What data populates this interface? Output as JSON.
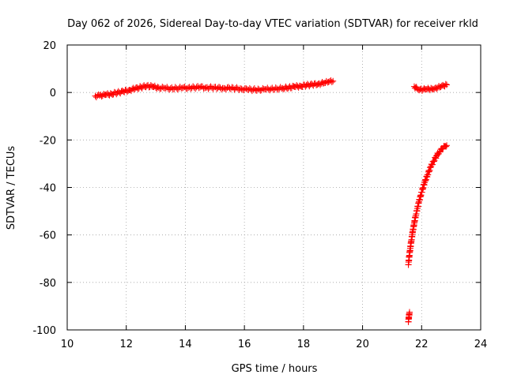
{
  "chart_data": {
    "type": "scatter",
    "title": "Day 062 of 2026, Sidereal Day-to-day VTEC variation (SDTVAR) for receiver rkld",
    "xlabel": "GPS time / hours",
    "ylabel": "SDTVAR / TECUs",
    "xlim": [
      10,
      24
    ],
    "ylim": [
      -100,
      20
    ],
    "x_ticks": [
      10,
      12,
      14,
      16,
      18,
      20,
      22,
      24
    ],
    "y_ticks": [
      20,
      0,
      -20,
      -40,
      -60,
      -80,
      -100
    ],
    "x_tick_labels": [
      "10",
      "12",
      "14",
      "16",
      "18",
      "20",
      "22",
      "24"
    ],
    "y_tick_labels": [
      "20",
      "0",
      "-20",
      "-40",
      "-60",
      "-80",
      "-100"
    ],
    "grid": true,
    "marker": "+",
    "colors": {
      "series": "#ff0000",
      "grid": "#a0a0a0",
      "axes": "#000000"
    },
    "series": [
      {
        "points": [
          [
            10.95,
            -1.5
          ],
          [
            11.1,
            -1.3
          ],
          [
            11.3,
            -1.0
          ],
          [
            11.5,
            -0.6
          ],
          [
            11.7,
            -0.1
          ],
          [
            11.9,
            0.4
          ],
          [
            12.1,
            1.0
          ],
          [
            12.3,
            1.6
          ],
          [
            12.5,
            2.2
          ],
          [
            12.7,
            2.8
          ],
          [
            12.9,
            2.4
          ],
          [
            13.1,
            2.0
          ],
          [
            13.3,
            1.8
          ],
          [
            13.5,
            1.7
          ],
          [
            13.7,
            1.8
          ],
          [
            13.9,
            1.9
          ],
          [
            14.1,
            2.0
          ],
          [
            14.3,
            2.1
          ],
          [
            14.5,
            2.2
          ],
          [
            14.7,
            2.1
          ],
          [
            14.9,
            2.0
          ],
          [
            15.1,
            1.9
          ],
          [
            15.3,
            1.8
          ],
          [
            15.5,
            1.8
          ],
          [
            15.7,
            1.7
          ],
          [
            15.9,
            1.5
          ],
          [
            16.1,
            1.3
          ],
          [
            16.3,
            1.2
          ],
          [
            16.5,
            1.2
          ],
          [
            16.7,
            1.3
          ],
          [
            16.9,
            1.5
          ],
          [
            17.1,
            1.6
          ],
          [
            17.3,
            1.8
          ],
          [
            17.5,
            2.1
          ],
          [
            17.7,
            2.4
          ],
          [
            17.9,
            2.7
          ],
          [
            18.1,
            3.0
          ],
          [
            18.3,
            3.3
          ],
          [
            18.5,
            3.6
          ],
          [
            18.7,
            4.0
          ],
          [
            18.85,
            4.4
          ],
          [
            19.0,
            4.8
          ]
        ]
      },
      {
        "points": [
          [
            21.75,
            2.5
          ],
          [
            21.85,
            1.6
          ],
          [
            21.95,
            1.3
          ],
          [
            22.05,
            1.2
          ],
          [
            22.15,
            1.3
          ],
          [
            22.25,
            1.4
          ],
          [
            22.35,
            1.6
          ],
          [
            22.45,
            1.8
          ],
          [
            22.55,
            2.1
          ],
          [
            22.65,
            2.4
          ],
          [
            22.75,
            2.8
          ],
          [
            22.85,
            3.2
          ]
        ]
      },
      {
        "points": [
          [
            21.55,
            -96.5
          ],
          [
            21.57,
            -94.5
          ],
          [
            21.59,
            -92.5
          ]
        ]
      },
      {
        "points": [
          [
            21.55,
            -72.5
          ],
          [
            21.6,
            -67.0
          ],
          [
            21.65,
            -62.5
          ],
          [
            21.7,
            -58.5
          ],
          [
            21.75,
            -55.0
          ],
          [
            21.8,
            -51.8
          ],
          [
            21.9,
            -46.5
          ],
          [
            22.0,
            -42.0
          ],
          [
            22.1,
            -38.0
          ],
          [
            22.2,
            -34.6
          ],
          [
            22.3,
            -31.6
          ],
          [
            22.4,
            -29.0
          ],
          [
            22.5,
            -26.8
          ],
          [
            22.6,
            -25.0
          ],
          [
            22.7,
            -23.6
          ],
          [
            22.8,
            -22.6
          ],
          [
            22.85,
            -22.3
          ]
        ]
      }
    ]
  }
}
